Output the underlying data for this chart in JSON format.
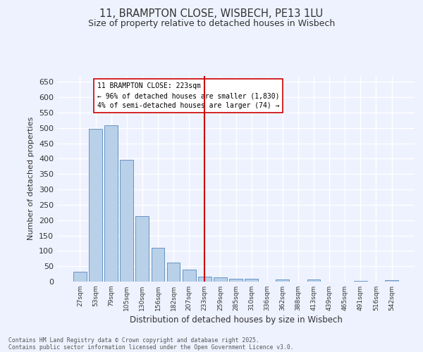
{
  "title_line1": "11, BRAMPTON CLOSE, WISBECH, PE13 1LU",
  "title_line2": "Size of property relative to detached houses in Wisbech",
  "xlabel": "Distribution of detached houses by size in Wisbech",
  "ylabel": "Number of detached properties",
  "categories": [
    "27sqm",
    "53sqm",
    "79sqm",
    "105sqm",
    "130sqm",
    "156sqm",
    "182sqm",
    "207sqm",
    "233sqm",
    "259sqm",
    "285sqm",
    "310sqm",
    "336sqm",
    "362sqm",
    "388sqm",
    "413sqm",
    "439sqm",
    "465sqm",
    "491sqm",
    "516sqm",
    "542sqm"
  ],
  "values": [
    33,
    498,
    508,
    396,
    213,
    110,
    62,
    40,
    17,
    14,
    9,
    9,
    0,
    8,
    0,
    7,
    0,
    0,
    3,
    0,
    5
  ],
  "bar_color": "#b8d0e8",
  "bar_edge_color": "#5588bb",
  "vline_index": 8,
  "vline_color": "#cc0000",
  "annotation_title": "11 BRAMPTON CLOSE: 223sqm",
  "annotation_line2": "← 96% of detached houses are smaller (1,830)",
  "annotation_line3": "4% of semi-detached houses are larger (74) →",
  "annotation_box_color": "#cc0000",
  "ylim": [
    0,
    670
  ],
  "yticks": [
    0,
    50,
    100,
    150,
    200,
    250,
    300,
    350,
    400,
    450,
    500,
    550,
    600,
    650
  ],
  "footer_line1": "Contains HM Land Registry data © Crown copyright and database right 2025.",
  "footer_line2": "Contains public sector information licensed under the Open Government Licence v3.0.",
  "bg_color": "#eef2ff",
  "grid_color": "#ffffff",
  "font_color": "#333333"
}
